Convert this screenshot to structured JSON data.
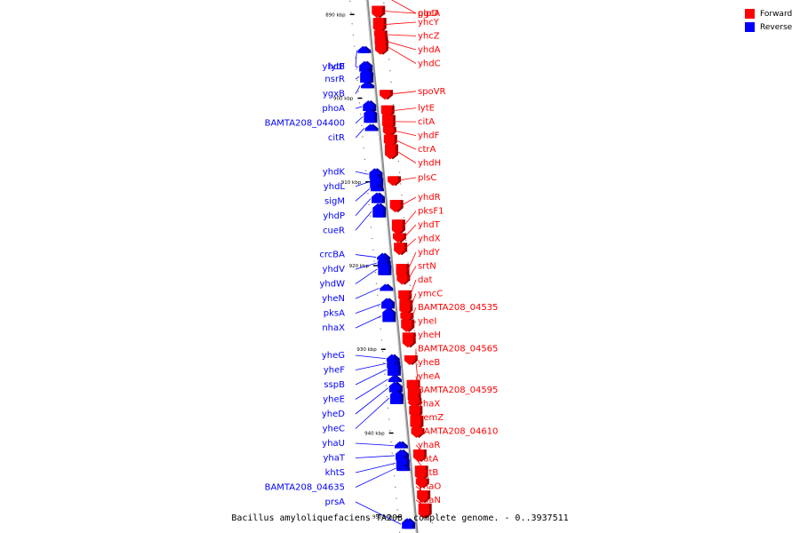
{
  "legend": [
    {
      "label": "Forward",
      "color": "#ff0000"
    },
    {
      "label": "Reverse",
      "color": "#0000ff"
    }
  ],
  "caption": "Bacillus amyloliquefaciens TA208, complete genome. - 0..3937511",
  "colors": {
    "forward": "#ff0000",
    "reverse": "#0000ff",
    "axis": "#8c8c8c",
    "tick": "#000000"
  },
  "map_range_kbp": [
    887,
    953
  ],
  "ticks": [
    {
      "label": "890 kbp",
      "kbp": 890
    },
    {
      "label": "900 kbp",
      "kbp": 900
    },
    {
      "label": "910 kbp",
      "kbp": 910
    },
    {
      "label": "920 kbp",
      "kbp": 920
    },
    {
      "label": "930 kbp",
      "kbp": 930
    },
    {
      "label": "940 kbp",
      "kbp": 940
    },
    {
      "label": "950 kbp",
      "kbp": 950
    }
  ],
  "forward_genes": [
    {
      "name": "glpD",
      "kbp": 887.6
    },
    {
      "name": "pgcA",
      "kbp": 889.6
    },
    {
      "name": "yhcY",
      "kbp": 891.2
    },
    {
      "name": "yhcZ",
      "kbp": 892.4
    },
    {
      "name": "yhdA",
      "kbp": 893.2
    },
    {
      "name": "yhdC",
      "kbp": 893.8
    },
    {
      "name": "spoVR",
      "kbp": 899.5
    },
    {
      "name": "lytE",
      "kbp": 901.5
    },
    {
      "name": "citA",
      "kbp": 902.8
    },
    {
      "name": "yhdF",
      "kbp": 903.9
    },
    {
      "name": "ctrA",
      "kbp": 905.0
    },
    {
      "name": "yhdH",
      "kbp": 906.3
    },
    {
      "name": "plsC",
      "kbp": 909.8
    },
    {
      "name": "yhdR",
      "kbp": 912.8
    },
    {
      "name": "pksF1",
      "kbp": 915.3
    },
    {
      "name": "yhdT",
      "kbp": 916.6
    },
    {
      "name": "yhdX",
      "kbp": 917.9
    },
    {
      "name": "yhdY",
      "kbp": 920.6
    },
    {
      "name": "srtN",
      "kbp": 921.6
    },
    {
      "name": "dat",
      "kbp": 923.6
    },
    {
      "name": "ymcC",
      "kbp": 924.9
    },
    {
      "name": "BAMTA208_04535",
      "kbp": 926.1
    },
    {
      "name": "yheI",
      "kbp": 927.1
    },
    {
      "name": "yheH",
      "kbp": 928.8
    },
    {
      "name": "BAMTA208_04565",
      "kbp": 931.2
    },
    {
      "name": "yheB",
      "kbp": 934.3
    },
    {
      "name": "yheA",
      "kbp": 935.5
    },
    {
      "name": "BAMTA208_04595",
      "kbp": 936.3
    },
    {
      "name": "yhaX",
      "kbp": 937.4
    },
    {
      "name": "hemZ",
      "kbp": 938.7
    },
    {
      "name": "BAMTA208_04610",
      "kbp": 939.9
    },
    {
      "name": "yhaR",
      "kbp": 942.6
    },
    {
      "name": "natA",
      "kbp": 944.7
    },
    {
      "name": "natB",
      "kbp": 945.9
    },
    {
      "name": "yhaO",
      "kbp": 947.5
    },
    {
      "name": "yhaN",
      "kbp": 949.2
    }
  ],
  "reverse_genes": [
    {
      "name": "yhdB",
      "kbp": 894.3
    },
    {
      "name": "lytF",
      "kbp": 896.3
    },
    {
      "name": "nsrR",
      "kbp": 897.4
    },
    {
      "name": "ygxB",
      "kbp": 898.5
    },
    {
      "name": "phoA",
      "kbp": 901.0
    },
    {
      "name": "BAMTA208_04400",
      "kbp": 902.2
    },
    {
      "name": "citR",
      "kbp": 903.6
    },
    {
      "name": "yhdK",
      "kbp": 909.1
    },
    {
      "name": "yhdL",
      "kbp": 910.0
    },
    {
      "name": "sigM",
      "kbp": 910.8
    },
    {
      "name": "yhdP",
      "kbp": 912.0
    },
    {
      "name": "cueR",
      "kbp": 913.5
    },
    {
      "name": "crcBA",
      "kbp": 919.0
    },
    {
      "name": "yhdV",
      "kbp": 919.7
    },
    {
      "name": "yhdW",
      "kbp": 920.4
    },
    {
      "name": "yheN",
      "kbp": 922.7
    },
    {
      "name": "pksA",
      "kbp": 924.6
    },
    {
      "name": "nhaX",
      "kbp": 926.0
    },
    {
      "name": "yheG",
      "kbp": 931.1
    },
    {
      "name": "yheF",
      "kbp": 931.7
    },
    {
      "name": "sspB",
      "kbp": 932.4
    },
    {
      "name": "yheE",
      "kbp": 933.6
    },
    {
      "name": "yheD",
      "kbp": 934.6
    },
    {
      "name": "yheC",
      "kbp": 935.8
    },
    {
      "name": "yhaU",
      "kbp": 941.5
    },
    {
      "name": "yhaT",
      "kbp": 942.7
    },
    {
      "name": "khtS",
      "kbp": 943.6
    },
    {
      "name": "BAMTA208_04635",
      "kbp": 944.2
    },
    {
      "name": "prsA",
      "kbp": 950.9
    }
  ]
}
